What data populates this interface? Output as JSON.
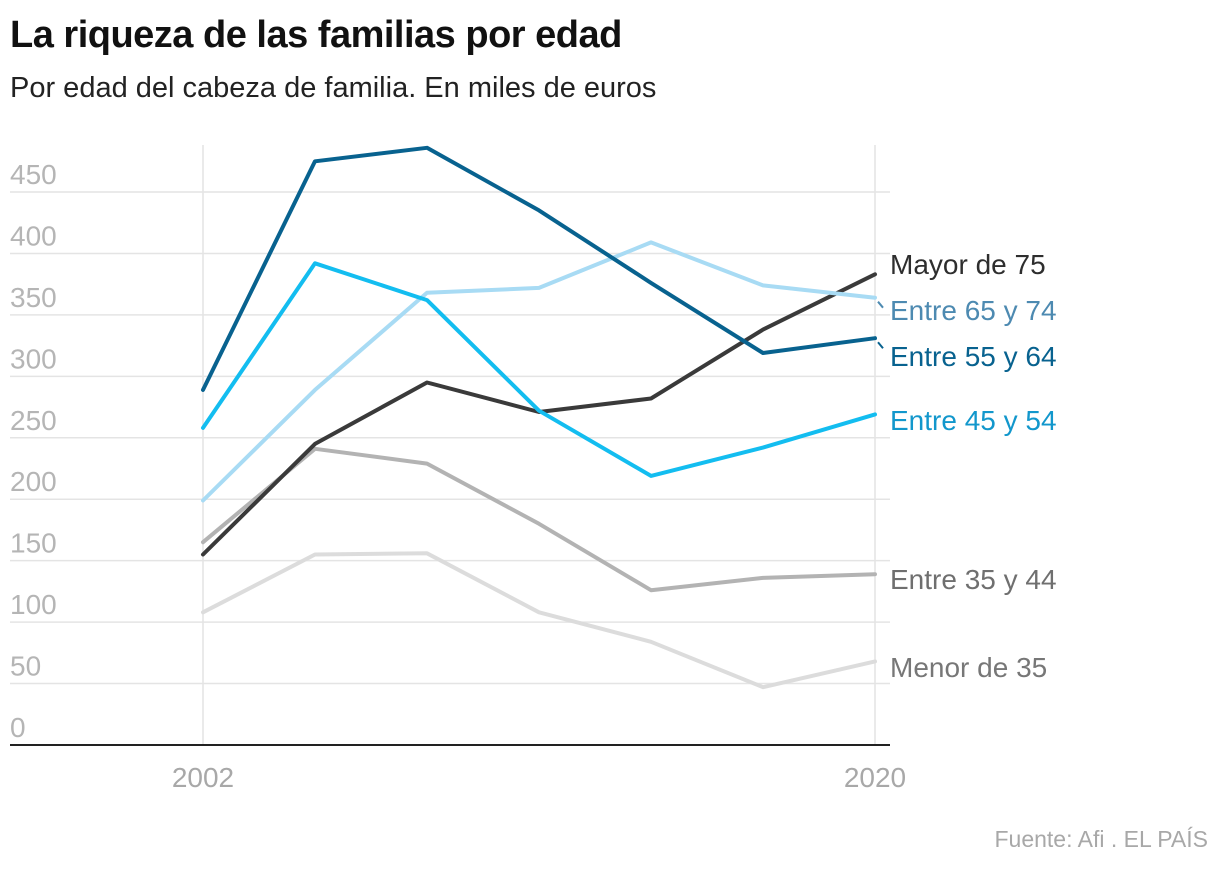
{
  "chart_data": {
    "type": "line",
    "title": "La riqueza de las familias por edad",
    "subtitle": "Por edad del cabeza de familia. En miles de euros",
    "source": "Fuente: Afi . EL PAÍS",
    "x": [
      2002,
      2005,
      2008,
      2011,
      2014,
      2017,
      2020
    ],
    "x_ticks": [
      {
        "value": 2002,
        "label": "2002"
      },
      {
        "value": 2020,
        "label": "2020"
      }
    ],
    "ylim": [
      0,
      490
    ],
    "y_ticks": [
      0,
      50,
      100,
      150,
      200,
      250,
      300,
      350,
      400,
      450
    ],
    "grid": true,
    "series": [
      {
        "name": "Menor de 35",
        "color": "#dcdcdc",
        "label_color": "#777777",
        "values": [
          108,
          155,
          156,
          108,
          84,
          47,
          68
        ]
      },
      {
        "name": "Entre 35 y 44",
        "color": "#b3b3b3",
        "label_color": "#6f6f6f",
        "values": [
          165,
          241,
          229,
          180,
          126,
          136,
          139
        ]
      },
      {
        "name": "Mayor de 75",
        "color": "#3a3a3a",
        "label_color": "#2e2e2e",
        "values": [
          155,
          245,
          295,
          271,
          282,
          338,
          383
        ]
      },
      {
        "name": "Entre 65 y 74",
        "color": "#a8dbf4",
        "label_color": "#4d8ab1",
        "values": [
          199,
          289,
          368,
          372,
          409,
          374,
          364
        ]
      },
      {
        "name": "Entre 45 y 54",
        "color": "#13bdf0",
        "label_color": "#1297cc",
        "values": [
          258,
          392,
          362,
          272,
          219,
          242,
          269
        ]
      },
      {
        "name": "Entre 55 y 64",
        "color": "#08628f",
        "label_color": "#08628f",
        "values": [
          289,
          475,
          486,
          435,
          376,
          319,
          331
        ]
      }
    ]
  }
}
